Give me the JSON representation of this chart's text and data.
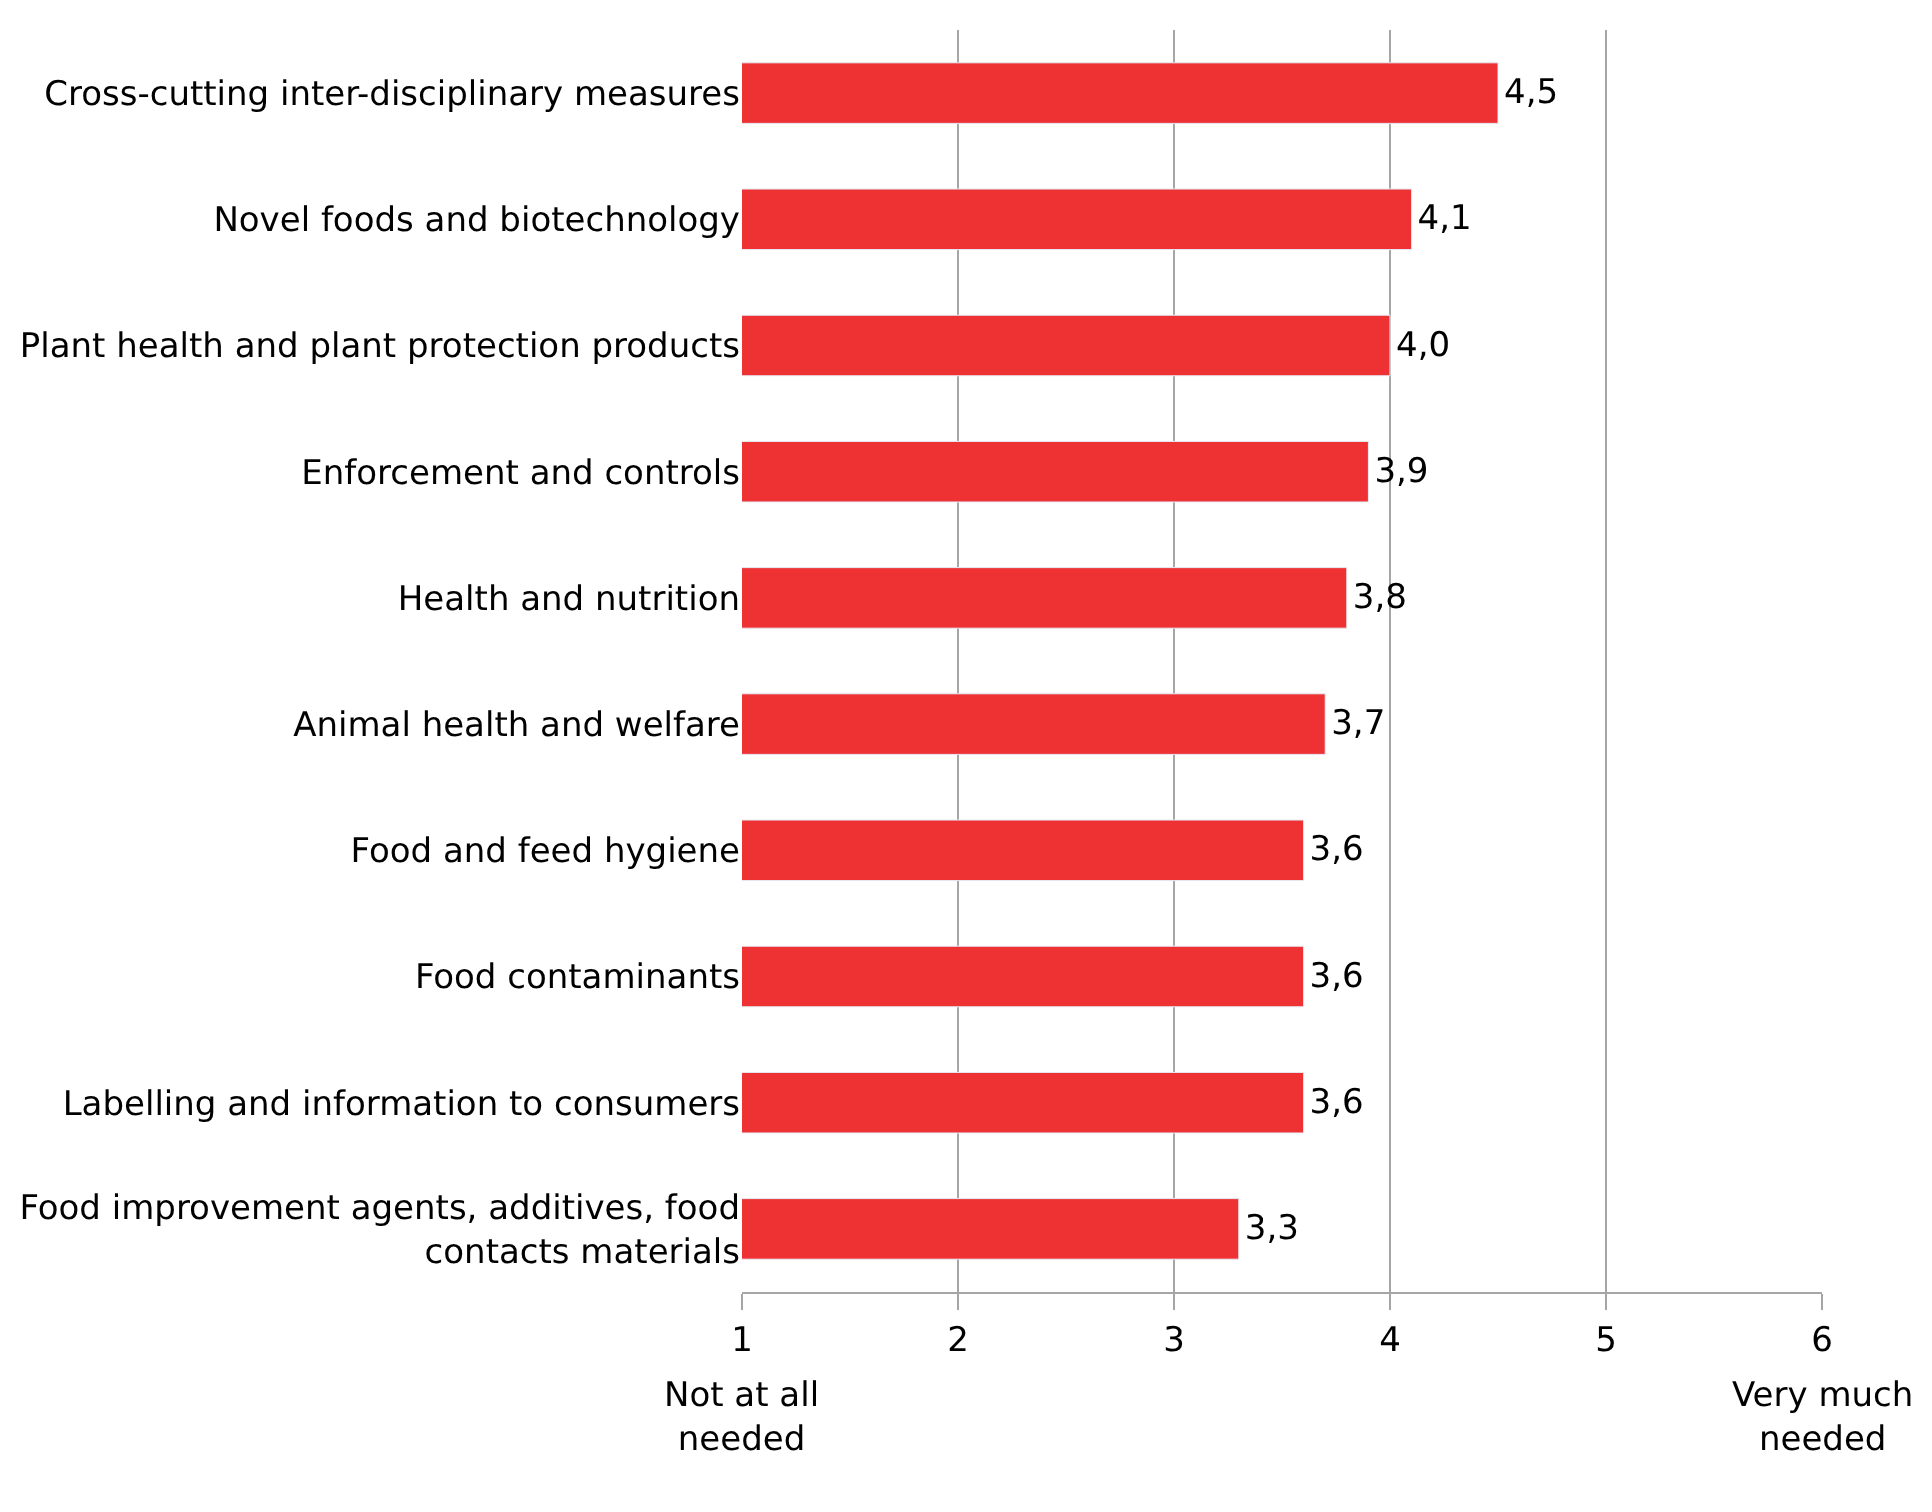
{
  "chart_data": {
    "type": "bar",
    "orientation": "horizontal",
    "categories": [
      "Cross-cutting inter-disciplinary measures",
      "Novel foods and biotechnology",
      "Plant health and plant protection products",
      "Enforcement and controls",
      "Health and nutrition",
      "Animal health and welfare",
      "Food and feed hygiene",
      "Food contaminants",
      "Labelling and information to consumers",
      "Food improvement agents, additives, food contacts materials"
    ],
    "values": [
      4.5,
      4.1,
      4.0,
      3.9,
      3.8,
      3.7,
      3.6,
      3.6,
      3.6,
      3.3
    ],
    "value_labels": [
      "4,5",
      "4,1",
      "4,0",
      "3,9",
      "3,8",
      "3,7",
      "3,6",
      "3,6",
      "3,6",
      "3,3"
    ],
    "color": "#ee3133",
    "xlim": [
      1,
      6
    ],
    "xticks": [
      1,
      2,
      3,
      4,
      5,
      6
    ],
    "grid": "x",
    "annotations": [
      "Not at all needed",
      "Very much needed"
    ]
  }
}
